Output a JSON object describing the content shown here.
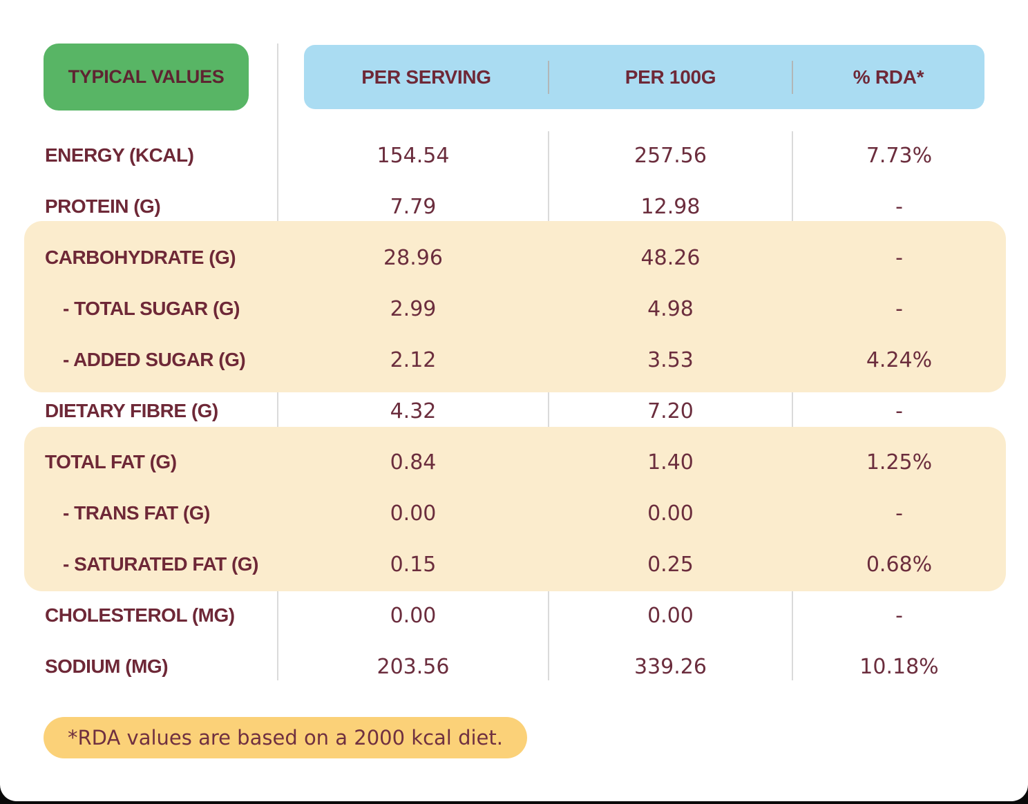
{
  "colors": {
    "badge_green": "#58b565",
    "header_blue": "#aadcf2",
    "highlight_cream": "#fbeccd",
    "footnote_gold": "#fbd178",
    "text_maroon": "#6e2837",
    "value_maroon": "#6b2d3d",
    "divider_gray": "#dadada"
  },
  "table": {
    "corner_label": "TYPICAL VALUES",
    "columns": [
      "PER SERVING",
      "PER 100G",
      "% RDA*"
    ],
    "rows": [
      {
        "label": "ENERGY (KCAL)",
        "indent": false,
        "highlight": false,
        "per_serving": "154.54",
        "per_100g": "257.56",
        "rda": "7.73%"
      },
      {
        "label": "PROTEIN (G)",
        "indent": false,
        "highlight": false,
        "per_serving": "7.79",
        "per_100g": "12.98",
        "rda": "-"
      },
      {
        "label": "CARBOHYDRATE (G)",
        "indent": false,
        "highlight": true,
        "per_serving": "28.96",
        "per_100g": "48.26",
        "rda": "-"
      },
      {
        "label": "- TOTAL SUGAR (G)",
        "indent": true,
        "highlight": true,
        "per_serving": "2.99",
        "per_100g": "4.98",
        "rda": "-"
      },
      {
        "label": "- ADDED SUGAR (G)",
        "indent": true,
        "highlight": true,
        "per_serving": "2.12",
        "per_100g": "3.53",
        "rda": "4.24%"
      },
      {
        "label": "DIETARY FIBRE (G)",
        "indent": false,
        "highlight": false,
        "per_serving": "4.32",
        "per_100g": "7.20",
        "rda": "-"
      },
      {
        "label": "TOTAL FAT (G)",
        "indent": false,
        "highlight": true,
        "per_serving": "0.84",
        "per_100g": "1.40",
        "rda": "1.25%"
      },
      {
        "label": "- TRANS FAT (G)",
        "indent": true,
        "highlight": true,
        "per_serving": "0.00",
        "per_100g": "0.00",
        "rda": "-"
      },
      {
        "label": "- SATURATED FAT (G)",
        "indent": true,
        "highlight": true,
        "per_serving": "0.15",
        "per_100g": "0.25",
        "rda": "0.68%"
      },
      {
        "label": "CHOLESTEROL (MG)",
        "indent": false,
        "highlight": false,
        "per_serving": "0.00",
        "per_100g": "0.00",
        "rda": "-"
      },
      {
        "label": "SODIUM (MG)",
        "indent": false,
        "highlight": false,
        "per_serving": "203.56",
        "per_100g": "339.26",
        "rda": "10.18%"
      }
    ]
  },
  "footnote": "*RDA values are based on a 2000 kcal diet.",
  "chart_data": {
    "type": "table",
    "title": "Typical Values nutrition table",
    "columns": [
      "TYPICAL VALUES",
      "PER SERVING",
      "PER 100G",
      "% RDA*"
    ],
    "rows": [
      [
        "ENERGY (KCAL)",
        154.54,
        257.56,
        "7.73%"
      ],
      [
        "PROTEIN (G)",
        7.79,
        12.98,
        "-"
      ],
      [
        "CARBOHYDRATE (G)",
        28.96,
        48.26,
        "-"
      ],
      [
        "- TOTAL SUGAR (G)",
        2.99,
        4.98,
        "-"
      ],
      [
        "- ADDED SUGAR (G)",
        2.12,
        3.53,
        "4.24%"
      ],
      [
        "DIETARY FIBRE (G)",
        4.32,
        7.2,
        "-"
      ],
      [
        "TOTAL FAT (G)",
        0.84,
        1.4,
        "1.25%"
      ],
      [
        "- TRANS FAT (G)",
        0.0,
        0.0,
        "-"
      ],
      [
        "- SATURATED FAT (G)",
        0.15,
        0.25,
        "0.68%"
      ],
      [
        "CHOLESTEROL (MG)",
        0.0,
        0.0,
        "-"
      ],
      [
        "SODIUM (MG)",
        203.56,
        339.26,
        "10.18%"
      ]
    ],
    "footnote": "*RDA values are based on a 2000 kcal diet.",
    "layout_hints": {
      "highlighted_row_groups": [
        [
          2,
          3,
          4
        ],
        [
          6,
          7,
          8
        ]
      ],
      "column_dividers": true
    }
  }
}
